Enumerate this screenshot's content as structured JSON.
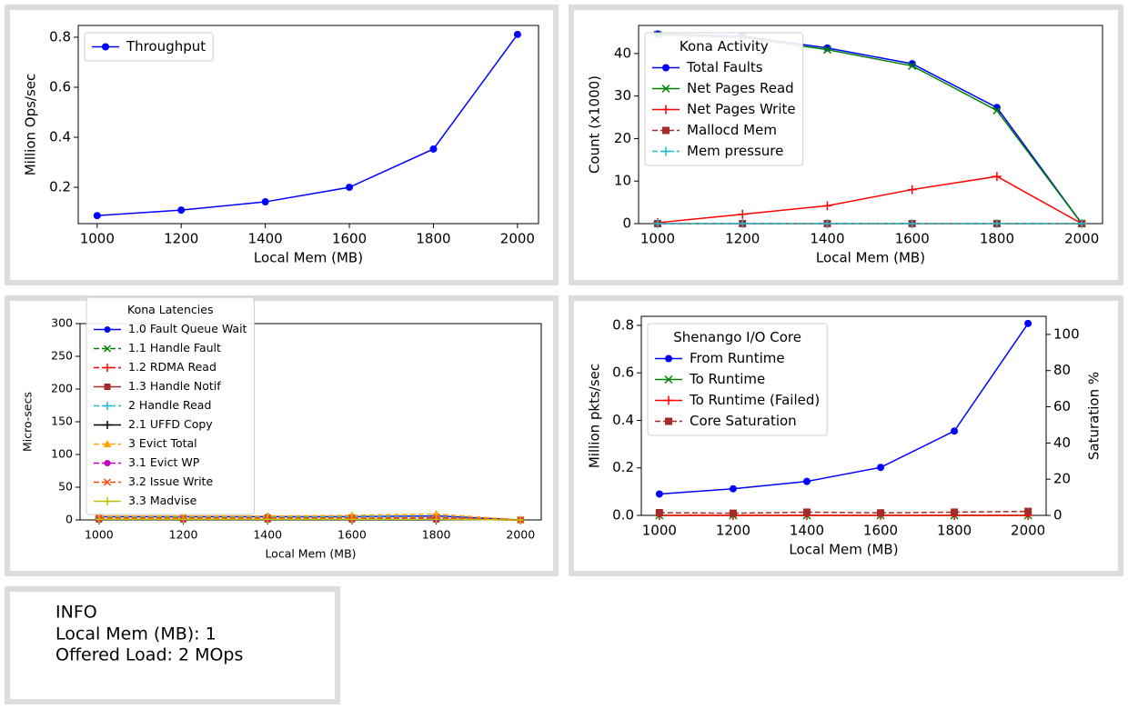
{
  "chart_data": [
    {
      "type": "line",
      "xlabel": "Local Mem (MB)",
      "ylabel": "Million Ops/sec",
      "x": [
        1000,
        1200,
        1400,
        1600,
        1800,
        2000
      ],
      "xlim": [
        955,
        2050
      ],
      "xticks": [
        1000,
        1200,
        1400,
        1600,
        1800,
        2000
      ],
      "ylim": [
        0.055,
        0.847
      ],
      "yticks": [
        0.2,
        0.4,
        0.6,
        0.8
      ],
      "legend": "upper left",
      "series": [
        {
          "name": "Throughput",
          "color": "#0000ff",
          "marker": "circle",
          "linestyle": "solid",
          "values": [
            0.087,
            0.109,
            0.142,
            0.2,
            0.353,
            0.811
          ]
        }
      ]
    },
    {
      "type": "line",
      "xlabel": "Local Mem (MB)",
      "ylabel": "Count (x1000)",
      "x": [
        1000,
        1200,
        1400,
        1600,
        1800,
        2000
      ],
      "xlim": [
        955,
        2049
      ],
      "xticks": [
        1000,
        1200,
        1400,
        1600,
        1800,
        2000
      ],
      "ylim": [
        0,
        46.6
      ],
      "yticks": [
        0,
        10,
        20,
        30,
        40
      ],
      "legend": "upper left",
      "legend_title": "Kona Activity",
      "series": [
        {
          "name": "Total Faults",
          "color": "#0000ff",
          "marker": "circle",
          "linestyle": "solid",
          "values": [
            44.6,
            44.1,
            41.3,
            37.6,
            27.3,
            0
          ]
        },
        {
          "name": "Net Pages Read",
          "color": "#008000",
          "marker": "x",
          "linestyle": "solid",
          "values": [
            44.4,
            43.8,
            40.9,
            37.1,
            26.6,
            0
          ]
        },
        {
          "name": "Net Pages Write",
          "color": "#ff0000",
          "marker": "plus",
          "linestyle": "solid",
          "values": [
            0.2,
            2.2,
            4.2,
            8.0,
            11.1,
            0
          ]
        },
        {
          "name": "Mallocd Mem",
          "color": "#a52a2a",
          "marker": "square",
          "linestyle": "dashed",
          "values": [
            0,
            0,
            0,
            0,
            0,
            0
          ]
        },
        {
          "name": "Mem pressure",
          "color": "#17becf",
          "marker": "plus",
          "linestyle": "dashed",
          "values": [
            0,
            0,
            0,
            0,
            0,
            0
          ]
        }
      ]
    },
    {
      "type": "line",
      "xlabel": "Local Mem (MB)",
      "ylabel": "Micro-secs",
      "x": [
        1000,
        1200,
        1400,
        1600,
        1800,
        2000
      ],
      "xlim": [
        955,
        2049
      ],
      "xticks": [
        1000,
        1200,
        1400,
        1600,
        1800,
        2000
      ],
      "ylim": [
        0,
        300
      ],
      "yticks": [
        0,
        50,
        100,
        150,
        200,
        250,
        300
      ],
      "legend": "upper left",
      "legend_title": "Kona Latencies",
      "series": [
        {
          "name": "1.0 Fault Queue Wait",
          "color": "#0000ff",
          "marker": "circle",
          "linestyle": "solid",
          "values": [
            5,
            5,
            5,
            5,
            6,
            0
          ]
        },
        {
          "name": "1.1 Handle Fault",
          "color": "#008000",
          "marker": "x",
          "linestyle": "dashed",
          "values": [
            3,
            3,
            3,
            3,
            3,
            0
          ]
        },
        {
          "name": "1.2 RDMA Read",
          "color": "#ff0000",
          "marker": "plus",
          "linestyle": "dashed",
          "values": [
            2,
            2,
            2,
            3,
            3,
            0
          ]
        },
        {
          "name": "1.3 Handle Notif",
          "color": "#a52a2a",
          "marker": "square",
          "linestyle": "solid",
          "values": [
            1,
            1,
            1,
            1,
            1,
            0
          ]
        },
        {
          "name": "2   Handle Read",
          "color": "#17becf",
          "marker": "plus",
          "linestyle": "dashed",
          "values": [
            5,
            5,
            5,
            5,
            5,
            0
          ]
        },
        {
          "name": "2.1 UFFD Copy",
          "color": "#000000",
          "marker": "plus",
          "linestyle": "solid",
          "values": [
            1,
            1,
            1,
            1,
            1,
            0
          ]
        },
        {
          "name": "3   Evict Total",
          "color": "#ffa500",
          "marker": "triangle",
          "linestyle": "dashed",
          "values": [
            6,
            6,
            6,
            7,
            9,
            0
          ]
        },
        {
          "name": "3.1 Evict WP",
          "color": "#bf00bf",
          "marker": "circle",
          "linestyle": "dashed",
          "values": [
            2,
            2,
            2,
            2,
            2,
            0
          ]
        },
        {
          "name": "3.2 Issue Write",
          "color": "#ff4500",
          "marker": "x",
          "linestyle": "dashed",
          "values": [
            3,
            3,
            3,
            3,
            4,
            0
          ]
        },
        {
          "name": "3.3 Madvise",
          "color": "#bfbf00",
          "marker": "plus",
          "linestyle": "solid",
          "values": [
            1,
            1,
            1,
            1,
            1,
            0
          ]
        }
      ]
    },
    {
      "type": "line",
      "xlabel": "Local Mem (MB)",
      "ylabel": "Million pkts/sec",
      "y2label": "Saturation %",
      "x": [
        1000,
        1200,
        1400,
        1600,
        1800,
        2000
      ],
      "xlim": [
        951,
        2049
      ],
      "xticks": [
        1000,
        1200,
        1400,
        1600,
        1800,
        2000
      ],
      "ylim": [
        0,
        0.838
      ],
      "yticks": [
        {
          "value": 0,
          "label": "0.0"
        },
        0.2,
        0.4,
        0.6,
        0.8
      ],
      "y2lim": [
        0,
        110
      ],
      "y2ticks": [
        0,
        20,
        40,
        60,
        80,
        100
      ],
      "legend": "upper left",
      "legend_title": "Shenango I/O Core",
      "series": [
        {
          "name": "From Runtime",
          "color": "#0000ff",
          "marker": "circle",
          "linestyle": "solid",
          "values": [
            0.09,
            0.112,
            0.143,
            0.202,
            0.355,
            0.808
          ]
        },
        {
          "name": "To Runtime",
          "color": "#008000",
          "marker": "x",
          "linestyle": "solid",
          "values": [
            0,
            0,
            0,
            0,
            0,
            0
          ]
        },
        {
          "name": "To Runtime (Failed)",
          "color": "#ff0000",
          "marker": "plus",
          "linestyle": "solid",
          "values": [
            0,
            0,
            0,
            0,
            0,
            0
          ]
        },
        {
          "name": "Core Saturation",
          "color": "#a52a2a",
          "marker": "square",
          "linestyle": "dashed",
          "axis": "y2",
          "values": [
            1.5,
            1.2,
            1.8,
            1.4,
            1.8,
            2.2
          ]
        }
      ]
    }
  ],
  "info": {
    "title": "INFO",
    "lines": [
      "Local Mem (MB): 1",
      "Offered Load: 2 MOps"
    ]
  }
}
